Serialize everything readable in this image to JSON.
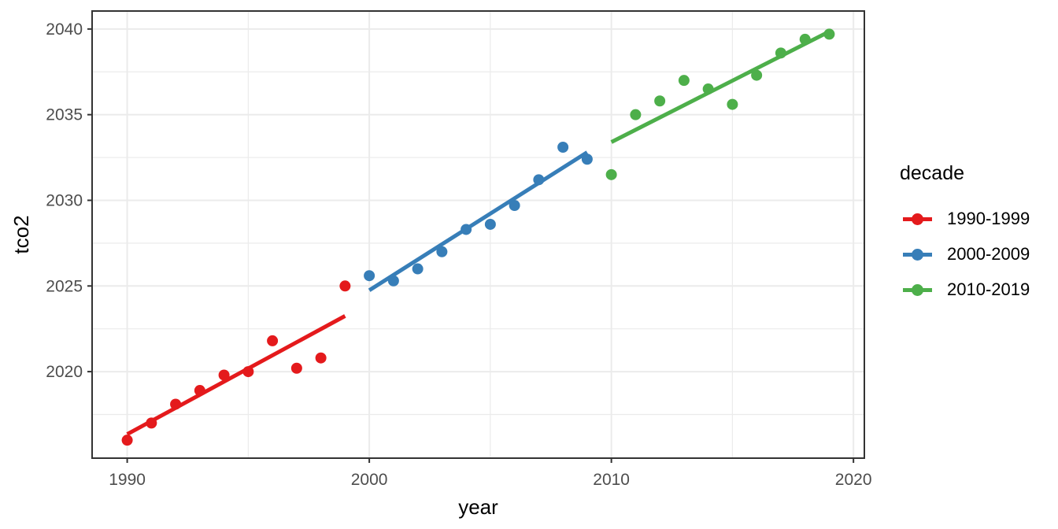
{
  "chart_data": {
    "type": "scatter",
    "title": "",
    "xlabel": "year",
    "ylabel": "tco2",
    "xlim": [
      1988.55,
      2020.45
    ],
    "ylim": [
      2014.95,
      2041.05
    ],
    "x_ticks": [
      {
        "value": 1990,
        "label": "1990"
      },
      {
        "value": 2000,
        "label": "2000"
      },
      {
        "value": 2010,
        "label": "2010"
      },
      {
        "value": 2020,
        "label": "2020"
      }
    ],
    "y_ticks": [
      {
        "value": 2020,
        "label": "2020"
      },
      {
        "value": 2025,
        "label": "2025"
      },
      {
        "value": 2030,
        "label": "2030"
      },
      {
        "value": 2035,
        "label": "2035"
      },
      {
        "value": 2040,
        "label": "2040"
      }
    ],
    "x_minor_gridlines": [
      1995,
      2005,
      2015
    ],
    "y_minor_gridlines": [
      2017.5,
      2022.5,
      2027.5,
      2032.5,
      2037.5
    ],
    "grid": true,
    "legend_position": "right",
    "legend": {
      "title": "decade"
    },
    "series": [
      {
        "name": "1990-1999",
        "color": "#E41A1C",
        "x": [
          1990,
          1991,
          1992,
          1993,
          1994,
          1995,
          1996,
          1997,
          1998,
          1999
        ],
        "y": [
          2016.0,
          2017.0,
          2018.1,
          2018.9,
          2019.8,
          2020.0,
          2021.8,
          2020.2,
          2020.8,
          2025.0
        ],
        "trend": {
          "x1": 1990,
          "y1": 2016.35,
          "x2": 1999,
          "y2": 2023.25
        }
      },
      {
        "name": "2000-2009",
        "color": "#377EB8",
        "x": [
          2000,
          2001,
          2002,
          2003,
          2004,
          2005,
          2006,
          2007,
          2008,
          2009
        ],
        "y": [
          2025.6,
          2025.3,
          2026.0,
          2027.0,
          2028.3,
          2028.6,
          2029.7,
          2031.2,
          2033.1,
          2032.4
        ],
        "trend": {
          "x1": 2000,
          "y1": 2024.75,
          "x2": 2009,
          "y2": 2032.8
        }
      },
      {
        "name": "2010-2019",
        "color": "#4DAF4A",
        "x": [
          2010,
          2011,
          2012,
          2013,
          2014,
          2015,
          2016,
          2017,
          2018,
          2019
        ],
        "y": [
          2031.5,
          2035.0,
          2035.8,
          2037.0,
          2036.5,
          2035.6,
          2037.3,
          2038.6,
          2039.4,
          2039.7
        ],
        "trend": {
          "x1": 2010,
          "y1": 2033.4,
          "x2": 2019,
          "y2": 2039.85
        }
      }
    ],
    "style": {
      "background": "#FFFFFF",
      "panel_background": "#FFFFFF",
      "grid_color": "#EBEBEB",
      "panel_border_color": "#333333",
      "tick_color": "#333333",
      "tick_label_color": "#4D4D4D",
      "title_color": "#000000",
      "point_radius": 7,
      "trend_line_width": 5
    }
  }
}
